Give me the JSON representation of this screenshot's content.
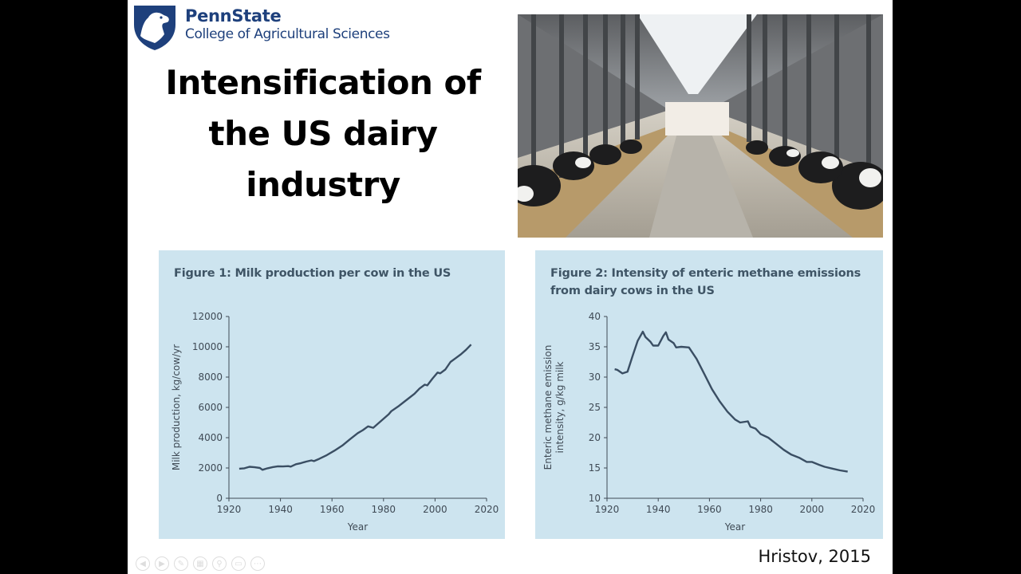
{
  "slide": {
    "brand": {
      "name": "PennState",
      "college": "College of Agricultural Sciences"
    },
    "title_lines": [
      "Intensification of",
      "the US dairy",
      "industry"
    ],
    "citation": "Hristov, 2015",
    "nav_controls": [
      "prev-icon",
      "next-icon",
      "pen-icon",
      "slides-icon",
      "zoom-icon",
      "screen-icon",
      "more-icon"
    ]
  },
  "chart_data": [
    {
      "type": "line",
      "title": "Figure 1: Milk production per cow in the US",
      "xlabel": "Year",
      "ylabel": "Milk production, kg/cow/yr",
      "xlim": [
        1920,
        2020
      ],
      "ylim": [
        0,
        12000
      ],
      "xticks": [
        1920,
        1940,
        1960,
        1980,
        2000,
        2020
      ],
      "yticks": [
        0,
        2000,
        4000,
        6000,
        8000,
        10000,
        12000
      ],
      "grid": false,
      "color": "#3a4e63",
      "x": [
        1924,
        1926,
        1928,
        1930,
        1932,
        1933,
        1935,
        1937,
        1939,
        1941,
        1943,
        1944,
        1946,
        1948,
        1950,
        1952,
        1953,
        1955,
        1958,
        1961,
        1964,
        1967,
        1970,
        1972,
        1974,
        1976,
        1979,
        1982,
        1983,
        1986,
        1989,
        1992,
        1994,
        1996,
        1997,
        1999,
        2001,
        2002,
        2004,
        2006,
        2008,
        2010,
        2012,
        2014
      ],
      "y": [
        1950,
        1980,
        2080,
        2050,
        2000,
        1880,
        1980,
        2060,
        2110,
        2100,
        2120,
        2090,
        2250,
        2320,
        2420,
        2500,
        2450,
        2600,
        2850,
        3150,
        3480,
        3900,
        4300,
        4500,
        4750,
        4650,
        5100,
        5550,
        5750,
        6100,
        6500,
        6900,
        7250,
        7500,
        7450,
        7900,
        8300,
        8250,
        8500,
        9000,
        9250,
        9500,
        9800,
        10150
      ]
    },
    {
      "type": "line",
      "title": "Figure 2: Intensity of enteric methane emissions from dairy cows in the US",
      "xlabel": "Year",
      "ylabel": "Enteric methane emission intensity, g/kg milk",
      "xlim": [
        1920,
        2020
      ],
      "ylim": [
        10,
        40
      ],
      "xticks": [
        1920,
        1940,
        1960,
        1980,
        2000,
        2020
      ],
      "yticks": [
        10,
        15,
        20,
        25,
        30,
        35,
        40
      ],
      "grid": false,
      "color": "#3a4e63",
      "x": [
        1923,
        1924,
        1926,
        1928,
        1930,
        1932,
        1934,
        1935,
        1937,
        1938,
        1940,
        1942,
        1943,
        1944,
        1946,
        1947,
        1949,
        1952,
        1955,
        1958,
        1961,
        1964,
        1967,
        1970,
        1972,
        1975,
        1976,
        1978,
        1980,
        1983,
        1986,
        1989,
        1992,
        1995,
        1998,
        2000,
        2003,
        2005,
        2008,
        2011,
        2014
      ],
      "y": [
        31.3,
        31.2,
        30.6,
        30.9,
        33.5,
        36.0,
        37.5,
        36.6,
        35.8,
        35.2,
        35.2,
        36.8,
        37.4,
        36.2,
        35.6,
        34.9,
        35.0,
        34.9,
        33.0,
        30.5,
        28.0,
        26.0,
        24.3,
        23.0,
        22.5,
        22.7,
        21.8,
        21.5,
        20.6,
        20.0,
        19.0,
        18.0,
        17.2,
        16.7,
        16.0,
        16.0,
        15.5,
        15.2,
        14.9,
        14.6,
        14.4
      ]
    }
  ]
}
